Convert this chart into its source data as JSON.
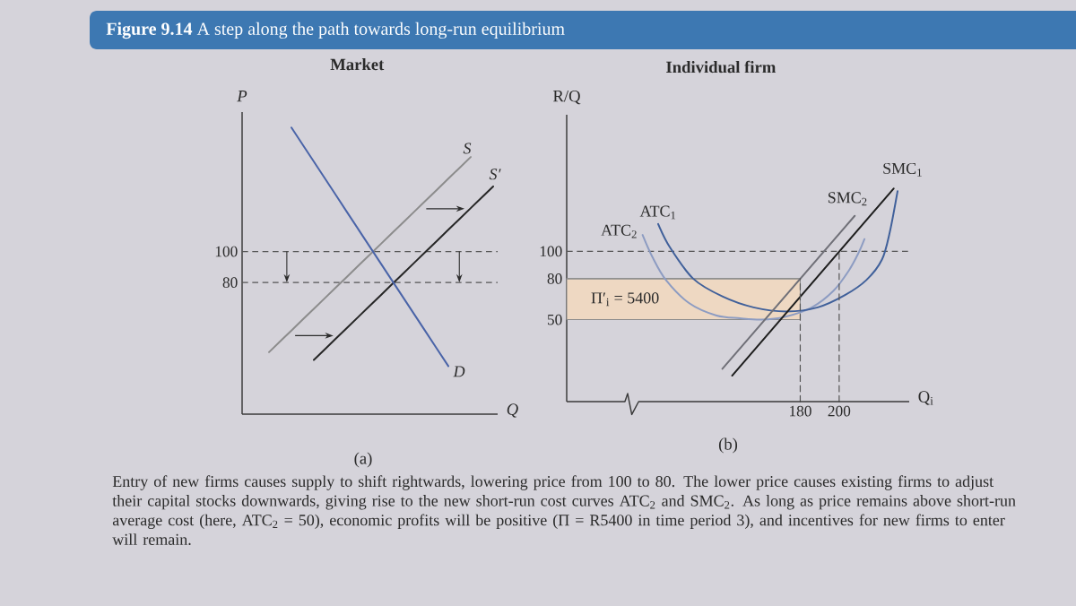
{
  "chart_data": [
    {
      "type": "line",
      "title": "Market",
      "xlabel": "Q",
      "ylabel": "P",
      "categories": [
        null,
        null,
        null,
        null,
        null,
        null,
        null,
        null,
        null,
        null,
        null
      ],
      "series": [
        {
          "name": "S",
          "color": "#8c8c8c",
          "values": [
            35,
            49,
            63,
            77,
            91,
            105,
            119,
            133,
            147,
            161,
            null
          ]
        },
        {
          "name": "S′",
          "color": "#262626",
          "values": [
            null,
            null,
            30,
            44,
            58,
            72,
            86,
            100,
            114,
            128,
            142
          ]
        },
        {
          "name": "D",
          "color": "#4a64a8",
          "values": [
            null,
            180,
            158,
            136,
            114,
            92,
            70,
            48,
            26,
            null,
            null
          ]
        }
      ],
      "ylim": [
        -5,
        190
      ],
      "yticks": [
        100,
        80
      ],
      "ref_lines": [
        {
          "axis": "y",
          "value": 100,
          "line_style": "dashed",
          "color": "#555555"
        },
        {
          "axis": "y",
          "value": 80,
          "line_style": "dashed",
          "color": "#555555"
        }
      ],
      "annotations": [
        "**Figure 9.14** A step along the path towards long-run equilibrium",
        "(a)"
      ]
    },
    {
      "type": "line",
      "title": "Individual firm",
      "xlabel": "Q$_{i}$",
      "ylabel": "R/Q",
      "series": [
        {
          "name": "Π′$_{i}$ = 5400",
          "color": "#8c8c8c",
          "x": [
            60,
            180
          ],
          "values": [
            80,
            80
          ],
          "lower": [
            50,
            50
          ],
          "upper": [
            80,
            80
          ]
        },
        {
          "name": "ATC$_{2}$",
          "color": "#8d9cc2",
          "x": [
            99,
            104,
            111,
            123,
            137,
            149,
            160,
            172,
            186,
            197,
            205,
            210,
            213
          ],
          "values": [
            112,
            96,
            79,
            62,
            53,
            51,
            50,
            52,
            59,
            71,
            86,
            99,
            109
          ]
        },
        {
          "name": "ATC$_{1}$",
          "color": "#40609a",
          "x": [
            107,
            113,
            125,
            140,
            156,
            173,
            189,
            203,
            214,
            222,
            226,
            230
          ],
          "values": [
            120,
            103,
            80,
            67,
            59,
            56,
            59,
            68,
            79,
            94,
            114,
            144
          ]
        },
        {
          "name": "SMC$_{2}$",
          "color": "#707078",
          "x": [
            140,
            208
          ],
          "values": [
            14,
            126
          ]
        },
        {
          "name": "SMC$_{1}$",
          "color": "#1e1e1e",
          "x": [
            145,
            228
          ],
          "values": [
            9,
            146
          ]
        },
        {
          "color": "#555555",
          "line_style": "dashed",
          "x": [
            180,
            180
          ],
          "values": [
            -10,
            80
          ]
        },
        {
          "color": "#555555",
          "line_style": "dashed",
          "x": [
            200,
            200
          ],
          "values": [
            -10,
            100
          ]
        }
      ],
      "xlim": [
        60,
        236
      ],
      "ylim": [
        -10,
        200
      ],
      "xticks": [
        180,
        200
      ],
      "yticks": [
        100,
        80,
        50
      ],
      "ref_lines": [
        {
          "axis": "y",
          "value": 100,
          "line_style": "dashed",
          "color": "#555555"
        }
      ],
      "annotations": [
        "(b)",
        "Entry of new firms causes supply to shift rightwards, lowering price from 100 to 80. The lower price causes existing firms to adjust their capital stocks downwards, giving rise to the new short-run cost curves ATC$_{2}$ and SMC$_{2}$. As long as price remains above short-run average cost (here, ATC$_{2}$ = 50), economic profits will be positive (Π = R5400 in time period 3), and incentives for new firms to enter will remain."
      ]
    }
  ]
}
